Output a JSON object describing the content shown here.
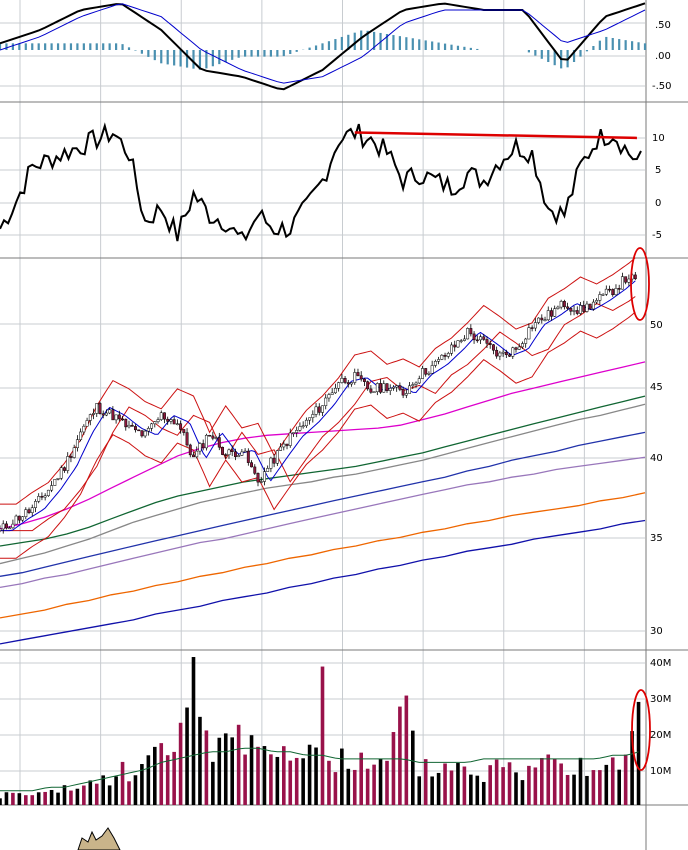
{
  "colors": {
    "background": "#ffffff",
    "grid": "#c8ccd0",
    "divider": "#7a7a7a",
    "price_line": "#000000",
    "candle_up": "#ffffff",
    "candle_down": "#8b1a3c",
    "ma_short": "#0000cc",
    "band": "#cc1111",
    "ma_pink": "#dd00cc",
    "ma_green": "#116633",
    "ma_gray": "#888888",
    "ma_navy": "#2233aa",
    "ma_purple": "#9977bb",
    "ma_orange": "#ee6600",
    "ma_blue": "#1111aa",
    "volume_up": "#000000",
    "volume_down": "#99124a",
    "annotation": "#dd0000",
    "histogram": "#4a90b0",
    "bottom_area": "#c9b48a"
  },
  "chart_data": [
    {
      "panel": "oscillator-top",
      "type": "line",
      "y_ticks": [
        ".50",
        ".00",
        "-.50"
      ],
      "ylim": [
        -0.75,
        0.75
      ],
      "x": [
        0,
        5,
        10,
        15,
        20,
        25,
        30,
        35,
        40,
        45,
        50,
        55,
        60,
        65,
        70,
        75,
        80
      ],
      "series": [
        {
          "name": "",
          "values": [
            0.1,
            0.3,
            0.6,
            0.7,
            0.3,
            -0.3,
            -0.4,
            -0.6,
            -0.3,
            0.2,
            0.6,
            0.7,
            0.6,
            0.6,
            -0.2,
            0.5,
            0.7
          ]
        },
        {
          "name": "",
          "values": [
            0.0,
            0.2,
            0.5,
            0.7,
            0.5,
            0.0,
            -0.3,
            -0.5,
            -0.4,
            -0.1,
            0.4,
            0.6,
            0.6,
            0.6,
            0.1,
            0.3,
            0.6
          ]
        }
      ],
      "histogram": [
        0.1,
        0.1,
        0.1,
        0.1,
        -0.2,
        -0.3,
        -0.1,
        -0.1,
        0.1,
        0.3,
        0.2,
        0.1,
        0.0,
        0.0,
        -0.3,
        0.2,
        0.1
      ]
    },
    {
      "panel": "oscillator-middle",
      "type": "line",
      "y_ticks": [
        "10",
        "5",
        "0",
        "-5"
      ],
      "ylim": [
        -8,
        14
      ],
      "x": [
        0,
        2,
        4,
        6,
        8,
        10,
        12,
        14,
        16,
        18,
        20,
        22,
        24,
        26,
        28,
        30,
        32,
        34,
        36,
        38,
        40,
        42,
        44,
        46,
        48,
        50,
        52,
        54,
        56,
        58,
        60,
        62,
        64,
        66,
        68,
        70,
        72,
        74,
        76,
        78,
        79
      ],
      "values": [
        -4,
        0,
        5,
        6,
        7,
        8,
        9,
        10,
        7,
        -3,
        -1,
        -5,
        1,
        -2,
        -3,
        -6,
        -2,
        -4,
        -4,
        -1,
        3,
        9,
        10,
        9,
        7,
        3,
        4,
        3,
        2,
        4,
        3,
        6,
        8,
        7,
        -1,
        -2,
        5,
        9,
        10,
        7,
        6
      ],
      "resistance_line": {
        "x": [
          44,
          79
        ],
        "y": [
          10,
          9.2
        ]
      }
    },
    {
      "panel": "price",
      "type": "candlestick",
      "scale": "log",
      "y_ticks": [
        "50",
        "45",
        "40",
        "35",
        "30"
      ],
      "ylim": [
        29.2,
        55.5
      ],
      "x": [
        0,
        2,
        4,
        6,
        8,
        10,
        12,
        14,
        16,
        18,
        20,
        22,
        24,
        26,
        28,
        30,
        32,
        34,
        36,
        38,
        40,
        42,
        44,
        46,
        48,
        50,
        52,
        54,
        56,
        58,
        60,
        62,
        64,
        66,
        68,
        70,
        72,
        74,
        76,
        78,
        79
      ],
      "close": [
        35.5,
        36.2,
        36.8,
        38.0,
        39.5,
        41.8,
        43.6,
        43.0,
        42.1,
        41.6,
        43.0,
        42.5,
        40.0,
        41.8,
        40.3,
        40.6,
        38.5,
        40.0,
        41.5,
        42.5,
        43.8,
        45.5,
        45.8,
        44.8,
        45.2,
        44.6,
        46.0,
        46.8,
        48.0,
        49.4,
        48.5,
        47.5,
        48.0,
        50.0,
        50.8,
        51.8,
        51.2,
        52.0,
        53.0,
        54.2,
        53.5
      ],
      "moving_averages": [
        {
          "name": "",
          "color": "ma_pink",
          "values": [
            35.6,
            35.9,
            36.3,
            36.8,
            37.4,
            38.1,
            38.8,
            39.5,
            40.2,
            40.7,
            41.1,
            41.4,
            41.6,
            41.7,
            41.8,
            41.9,
            42.0,
            42.1,
            42.3,
            42.7,
            43.1,
            43.6,
            44.1,
            44.6,
            45.0,
            45.4,
            45.8,
            46.2,
            46.6,
            47.0
          ]
        },
        {
          "name": "",
          "color": "ma_green",
          "values": [
            34.6,
            34.8,
            35.0,
            35.3,
            35.7,
            36.2,
            36.7,
            37.2,
            37.6,
            37.9,
            38.2,
            38.5,
            38.7,
            38.9,
            39.1,
            39.3,
            39.5,
            39.8,
            40.1,
            40.4,
            40.8,
            41.2,
            41.6,
            42.0,
            42.4,
            42.8,
            43.2,
            43.6,
            44.0,
            44.4
          ]
        },
        {
          "name": "",
          "color": "ma_gray",
          "values": [
            33.6,
            33.9,
            34.2,
            34.6,
            35.0,
            35.5,
            36.0,
            36.4,
            36.8,
            37.2,
            37.5,
            37.8,
            38.1,
            38.3,
            38.5,
            38.8,
            39.0,
            39.3,
            39.6,
            39.9,
            40.3,
            40.7,
            41.1,
            41.5,
            41.9,
            42.3,
            42.7,
            43.0,
            43.4,
            43.8
          ]
        },
        {
          "name": "",
          "color": "ma_navy",
          "values": [
            32.9,
            33.1,
            33.4,
            33.7,
            34.0,
            34.3,
            34.6,
            34.9,
            35.2,
            35.5,
            35.8,
            36.1,
            36.4,
            36.7,
            37.0,
            37.3,
            37.6,
            37.9,
            38.2,
            38.5,
            38.8,
            39.2,
            39.5,
            39.9,
            40.2,
            40.5,
            40.9,
            41.2,
            41.5,
            41.8
          ]
        },
        {
          "name": "",
          "color": "ma_purple",
          "values": [
            32.3,
            32.5,
            32.8,
            33.0,
            33.3,
            33.6,
            33.9,
            34.2,
            34.5,
            34.8,
            35.0,
            35.3,
            35.6,
            35.9,
            36.2,
            36.5,
            36.8,
            37.1,
            37.4,
            37.7,
            38.0,
            38.3,
            38.5,
            38.8,
            39.0,
            39.3,
            39.5,
            39.7,
            39.9,
            40.1
          ]
        },
        {
          "name": "",
          "color": "ma_orange",
          "values": [
            30.7,
            30.9,
            31.1,
            31.4,
            31.6,
            31.9,
            32.1,
            32.4,
            32.6,
            32.9,
            33.1,
            33.4,
            33.6,
            33.9,
            34.1,
            34.4,
            34.6,
            34.9,
            35.1,
            35.4,
            35.6,
            35.9,
            36.1,
            36.4,
            36.6,
            36.8,
            37.0,
            37.3,
            37.5,
            37.8
          ]
        },
        {
          "name": "",
          "color": "ma_blue",
          "values": [
            29.4,
            29.6,
            29.8,
            30.0,
            30.2,
            30.4,
            30.6,
            30.9,
            31.1,
            31.3,
            31.6,
            31.8,
            32.0,
            32.3,
            32.5,
            32.8,
            33.0,
            33.3,
            33.5,
            33.8,
            34.0,
            34.3,
            34.5,
            34.7,
            35.0,
            35.2,
            35.4,
            35.6,
            35.9,
            36.1
          ]
        }
      ]
    },
    {
      "panel": "volume",
      "type": "bar",
      "y_ticks": [
        "40M",
        "30M",
        "20M",
        "10M"
      ],
      "ylim": [
        0,
        40
      ],
      "x": [
        0,
        2,
        4,
        6,
        8,
        10,
        12,
        14,
        16,
        18,
        20,
        22,
        24,
        26,
        28,
        30,
        32,
        34,
        36,
        38,
        40,
        42,
        44,
        46,
        48,
        50,
        52,
        54,
        56,
        58,
        60,
        62,
        64,
        66,
        68,
        70,
        72,
        74,
        76,
        78,
        79
      ],
      "values": [
        3,
        4,
        3,
        4,
        5,
        6,
        8,
        9,
        12,
        14,
        18,
        17,
        39,
        20,
        22,
        23,
        24,
        18,
        16,
        15,
        14,
        16,
        15,
        12,
        14,
        32,
        13,
        12,
        14,
        12,
        11,
        13,
        12,
        11,
        24,
        14,
        15,
        12,
        16,
        19,
        26
      ],
      "average": [
        4,
        4,
        4,
        5,
        5,
        6,
        7,
        8,
        9,
        10,
        12,
        13,
        14,
        15,
        15,
        16,
        16,
        15,
        15,
        14,
        14,
        13,
        13,
        13,
        13,
        13,
        12,
        12,
        12,
        12,
        13,
        13,
        13,
        13,
        13,
        13,
        13,
        13,
        14,
        14,
        15
      ]
    }
  ]
}
